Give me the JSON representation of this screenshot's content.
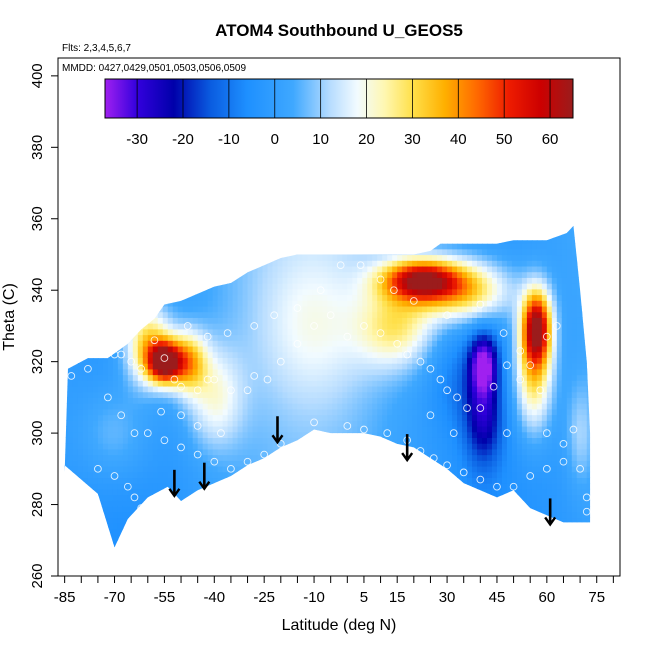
{
  "chart_data": {
    "type": "heatmap",
    "title": "ATOM4 Southbound U_GEOS5",
    "flights_label": "Flts: 2,3,4,5,6,7",
    "dates_label": "MMDD: 0427,0429,0501,0503,0506,0509",
    "xlabel": "Latitude (deg N)",
    "ylabel": "Theta (C)",
    "xlim": [
      -87,
      82
    ],
    "ylim": [
      260,
      405
    ],
    "x_ticks": [
      -85,
      -70,
      -55,
      -40,
      -25,
      -10,
      5,
      15,
      30,
      45,
      60,
      75
    ],
    "x_minor_ticks": [
      -80,
      -75,
      -65,
      -60,
      -50,
      -45,
      -35,
      -30,
      -20,
      -15,
      -5,
      0,
      10,
      20,
      25,
      35,
      40,
      50,
      55,
      65,
      70,
      80
    ],
    "y_ticks": [
      260,
      280,
      300,
      320,
      340,
      360,
      380,
      400
    ],
    "colorbar": {
      "ticks": [
        -30,
        -20,
        -10,
        0,
        10,
        20,
        30,
        40,
        50,
        60
      ],
      "range": [
        -37,
        65
      ],
      "stops": [
        {
          "v": -37,
          "color": "#a020f0"
        },
        {
          "v": -30,
          "color": "#3300dd"
        },
        {
          "v": -22,
          "color": "#0000aa"
        },
        {
          "v": -14,
          "color": "#0a5ce0"
        },
        {
          "v": -6,
          "color": "#1e90ff"
        },
        {
          "v": 4,
          "color": "#3fa8ff"
        },
        {
          "v": 12,
          "color": "#b6dcff"
        },
        {
          "v": 18,
          "color": "#f2fbff"
        },
        {
          "v": 24,
          "color": "#fff7b0"
        },
        {
          "v": 30,
          "color": "#ffe04a"
        },
        {
          "v": 37,
          "color": "#ffb000"
        },
        {
          "v": 44,
          "color": "#ff6a00"
        },
        {
          "v": 51,
          "color": "#ee1c00"
        },
        {
          "v": 58,
          "color": "#cc0000"
        },
        {
          "v": 65,
          "color": "#9b1c1c"
        }
      ]
    },
    "field_bottom": [
      [
        -85,
        291
      ],
      [
        -75,
        283
      ],
      [
        -70,
        268
      ],
      [
        -66,
        276
      ],
      [
        -60,
        282
      ],
      [
        -54,
        285
      ],
      [
        -50,
        281
      ],
      [
        -45,
        284
      ],
      [
        -40,
        286
      ],
      [
        -35,
        288
      ],
      [
        -30,
        291
      ],
      [
        -25,
        293
      ],
      [
        -20,
        296
      ],
      [
        -15,
        298
      ],
      [
        -10,
        301
      ],
      [
        -5,
        300
      ],
      [
        0,
        300
      ],
      [
        5,
        300
      ],
      [
        10,
        299
      ],
      [
        15,
        297
      ],
      [
        20,
        296
      ],
      [
        25,
        293
      ],
      [
        30,
        290
      ],
      [
        35,
        286
      ],
      [
        40,
        284
      ],
      [
        45,
        282
      ],
      [
        50,
        284
      ],
      [
        55,
        279
      ],
      [
        60,
        277
      ],
      [
        65,
        275
      ],
      [
        68,
        275
      ],
      [
        72,
        275
      ]
    ],
    "field_top": [
      [
        -85,
        289
      ],
      [
        -84,
        318
      ],
      [
        -78,
        321
      ],
      [
        -72,
        321
      ],
      [
        -66,
        325
      ],
      [
        -62,
        329
      ],
      [
        -58,
        332
      ],
      [
        -55,
        336
      ],
      [
        -50,
        337
      ],
      [
        -45,
        339
      ],
      [
        -40,
        341
      ],
      [
        -35,
        342
      ],
      [
        -30,
        345
      ],
      [
        -25,
        347
      ],
      [
        -20,
        349
      ],
      [
        -15,
        350
      ],
      [
        -10,
        350
      ],
      [
        0,
        350
      ],
      [
        10,
        350
      ],
      [
        20,
        350
      ],
      [
        25,
        351
      ],
      [
        28,
        353
      ],
      [
        35,
        353
      ],
      [
        40,
        353
      ],
      [
        45,
        353
      ],
      [
        50,
        354
      ],
      [
        55,
        354
      ],
      [
        60,
        354
      ],
      [
        66,
        356
      ],
      [
        68,
        358
      ],
      [
        70,
        340
      ],
      [
        72,
        320
      ],
      [
        73,
        300
      ],
      [
        73,
        275
      ]
    ],
    "blobs": [
      {
        "lat": -55,
        "theta": 320,
        "value": 62,
        "sx": 3.5,
        "sy": 4
      },
      {
        "lat": -60,
        "theta": 325,
        "value": 35,
        "sx": 5,
        "sy": 8
      },
      {
        "lat": -48,
        "theta": 320,
        "value": 35,
        "sx": 4,
        "sy": 6
      },
      {
        "lat": -40,
        "theta": 310,
        "value": 20,
        "sx": 6,
        "sy": 10
      },
      {
        "lat": 22,
        "theta": 343,
        "value": 55,
        "sx": 8,
        "sy": 4
      },
      {
        "lat": 35,
        "theta": 340,
        "value": 35,
        "sx": 10,
        "sy": 6
      },
      {
        "lat": 15,
        "theta": 330,
        "value": 25,
        "sx": 8,
        "sy": 8
      },
      {
        "lat": 57,
        "theta": 330,
        "value": 55,
        "sx": 3,
        "sy": 7
      },
      {
        "lat": 56,
        "theta": 318,
        "value": 35,
        "sx": 4,
        "sy": 12
      },
      {
        "lat": 41,
        "theta": 320,
        "value": -28,
        "sx": 3,
        "sy": 6
      },
      {
        "lat": 41,
        "theta": 305,
        "value": -20,
        "sx": 4,
        "sy": 10
      },
      {
        "lat": 33,
        "theta": 315,
        "value": -5,
        "sx": 6,
        "sy": 10
      },
      {
        "lat": -10,
        "theta": 330,
        "value": 12,
        "sx": 12,
        "sy": 15
      },
      {
        "lat": -70,
        "theta": 300,
        "value": 12,
        "sx": 8,
        "sy": 10
      },
      {
        "lat": 70,
        "theta": 300,
        "value": 12,
        "sx": 3,
        "sy": 10
      }
    ],
    "base_value": 2,
    "obs_points": [
      [
        -83,
        316
      ],
      [
        -78,
        318
      ],
      [
        -70,
        322
      ],
      [
        -68,
        322
      ],
      [
        -65,
        320
      ],
      [
        -62,
        318
      ],
      [
        -58,
        326
      ],
      [
        -55,
        321
      ],
      [
        -52,
        315
      ],
      [
        -50,
        313
      ],
      [
        -45,
        312
      ],
      [
        -42,
        315
      ],
      [
        -40,
        315
      ],
      [
        -35,
        312
      ],
      [
        -30,
        312
      ],
      [
        -28,
        316
      ],
      [
        -24,
        315
      ],
      [
        -20,
        320
      ],
      [
        -15,
        325
      ],
      [
        -10,
        330
      ],
      [
        -5,
        333
      ],
      [
        0,
        327
      ],
      [
        5,
        330
      ],
      [
        10,
        328
      ],
      [
        15,
        325
      ],
      [
        18,
        322
      ],
      [
        22,
        320
      ],
      [
        25,
        318
      ],
      [
        28,
        315
      ],
      [
        30,
        312
      ],
      [
        33,
        310
      ],
      [
        36,
        307
      ],
      [
        40,
        307
      ],
      [
        44,
        313
      ],
      [
        48,
        319
      ],
      [
        52,
        315
      ],
      [
        55,
        319
      ],
      [
        60,
        327
      ],
      [
        63,
        330
      ],
      [
        -60,
        300
      ],
      [
        -55,
        298
      ],
      [
        -50,
        296
      ],
      [
        -45,
        294
      ],
      [
        -40,
        292
      ],
      [
        -35,
        290
      ],
      [
        -30,
        292
      ],
      [
        -25,
        294
      ],
      [
        -20,
        297
      ],
      [
        -10,
        303
      ],
      [
        0,
        302
      ],
      [
        5,
        301
      ],
      [
        12,
        300
      ],
      [
        18,
        298
      ],
      [
        22,
        295
      ],
      [
        26,
        293
      ],
      [
        30,
        291
      ],
      [
        35,
        289
      ],
      [
        40,
        287
      ],
      [
        45,
        285
      ],
      [
        50,
        285
      ],
      [
        55,
        288
      ],
      [
        60,
        290
      ],
      [
        65,
        292
      ],
      [
        70,
        290
      ],
      [
        72,
        282
      ],
      [
        72,
        278
      ],
      [
        -75,
        290
      ],
      [
        -70,
        288
      ],
      [
        -66,
        285
      ],
      [
        -64,
        282
      ],
      [
        -62,
        279
      ],
      [
        -48,
        330
      ],
      [
        -42,
        327
      ],
      [
        -36,
        328
      ],
      [
        -28,
        330
      ],
      [
        -22,
        333
      ],
      [
        -15,
        335
      ],
      [
        -8,
        340
      ],
      [
        -2,
        347
      ],
      [
        4,
        347
      ],
      [
        10,
        343
      ],
      [
        14,
        340
      ],
      [
        20,
        337
      ],
      [
        30,
        333
      ],
      [
        40,
        336
      ],
      [
        47,
        328
      ],
      [
        52,
        323
      ],
      [
        58,
        312
      ],
      [
        60,
        300
      ],
      [
        65,
        297
      ],
      [
        -72,
        310
      ],
      [
        -68,
        305
      ],
      [
        -64,
        300
      ],
      [
        -56,
        306
      ],
      [
        -50,
        305
      ],
      [
        -45,
        302
      ],
      [
        -38,
        300
      ],
      [
        25,
        305
      ],
      [
        32,
        300
      ],
      [
        48,
        300
      ],
      [
        68,
        301
      ]
    ],
    "arrows_lat": [
      -52,
      -43,
      -21,
      18,
      61
    ],
    "arrows_theta": [
      283,
      285,
      298,
      293,
      275
    ]
  }
}
